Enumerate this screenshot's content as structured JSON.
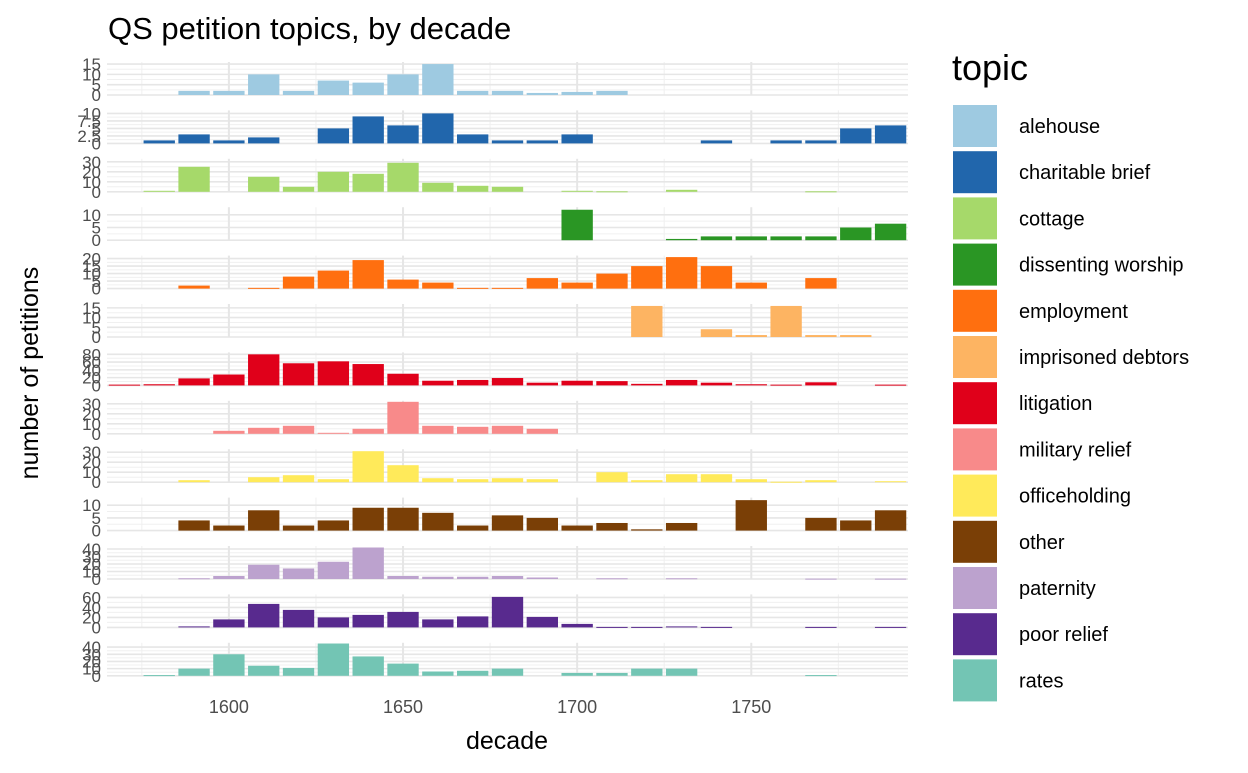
{
  "chart_data": {
    "type": "bar",
    "title": "QS petition topics, by decade",
    "xlabel": "decade",
    "ylabel": "number of petitions",
    "legend_title": "topic",
    "legend_position": "right",
    "x_ticks": [
      1600,
      1650,
      1700,
      1750
    ],
    "xlim": [
      1565,
      1795
    ],
    "grid": true,
    "categories": [
      1570,
      1580,
      1590,
      1600,
      1610,
      1620,
      1630,
      1640,
      1650,
      1660,
      1670,
      1680,
      1690,
      1700,
      1710,
      1720,
      1730,
      1740,
      1750,
      1760,
      1770,
      1780,
      1790
    ],
    "series": [
      {
        "name": "alehouse",
        "color": "#9ECAE1",
        "ylim": [
          0,
          16
        ],
        "y_ticks": [
          0,
          5,
          10,
          15
        ],
        "values": [
          0,
          0,
          2,
          2,
          10,
          2,
          7,
          6,
          10,
          15,
          2,
          2,
          1,
          1.5,
          2,
          0,
          0,
          0,
          0,
          0,
          0,
          0,
          0
        ]
      },
      {
        "name": "charitable brief",
        "color": "#2166AC",
        "ylim": [
          0,
          11
        ],
        "y_ticks": [
          0,
          2.5,
          5,
          7.5,
          10
        ],
        "values": [
          0,
          1,
          3,
          1,
          2,
          0,
          5,
          9,
          6,
          10,
          3,
          1,
          1,
          3,
          0,
          0,
          0,
          1,
          0,
          1,
          1,
          5,
          6
        ]
      },
      {
        "name": "cottage",
        "color": "#A6D96A",
        "ylim": [
          0,
          33
        ],
        "y_ticks": [
          0,
          10,
          20,
          30
        ],
        "values": [
          0,
          1,
          25,
          0,
          15,
          5,
          20,
          18,
          29,
          9,
          6,
          5,
          0,
          1,
          0.5,
          0,
          2,
          0,
          0,
          0,
          0.5,
          0,
          0
        ]
      },
      {
        "name": "dissenting worship",
        "color": "#2A9624",
        "ylim": [
          0,
          13
        ],
        "y_ticks": [
          0,
          5,
          10
        ],
        "values": [
          0,
          0,
          0,
          0,
          0,
          0,
          0,
          0,
          0,
          0,
          0,
          0,
          0,
          12,
          0,
          0,
          0.5,
          1.5,
          1.5,
          1.5,
          1.5,
          5,
          6.5
        ]
      },
      {
        "name": "employment",
        "color": "#FF6F0F",
        "ylim": [
          0,
          22
        ],
        "y_ticks": [
          0,
          5,
          10,
          15,
          20
        ],
        "values": [
          0,
          0,
          2,
          0,
          0.5,
          8,
          12,
          19,
          6,
          4,
          0.5,
          0.5,
          7,
          4,
          10,
          15,
          21,
          15,
          4,
          0,
          7,
          0,
          0
        ]
      },
      {
        "name": "imprisoned debtors",
        "color": "#FDB462",
        "ylim": [
          0,
          17
        ],
        "y_ticks": [
          0,
          5,
          10,
          15
        ],
        "values": [
          0,
          0,
          0,
          0,
          0,
          0,
          0,
          0,
          0,
          0,
          0,
          0,
          0,
          0,
          0,
          16,
          0,
          4,
          1,
          16,
          1,
          1,
          0
        ]
      },
      {
        "name": "litigation",
        "color": "#E0001A",
        "ylim": [
          0,
          85
        ],
        "y_ticks": [
          0,
          20,
          40,
          60,
          80
        ],
        "values": [
          2,
          3,
          18,
          28,
          80,
          57,
          62,
          55,
          30,
          12,
          14,
          19,
          7,
          12,
          11,
          4,
          14,
          7,
          3,
          2,
          8,
          0,
          2
        ]
      },
      {
        "name": "military relief",
        "color": "#F88A8A",
        "ylim": [
          0,
          33
        ],
        "y_ticks": [
          0,
          10,
          20,
          30
        ],
        "values": [
          0,
          0,
          0,
          3,
          6,
          8,
          1,
          5,
          32,
          8,
          7,
          8,
          5,
          0,
          0,
          0,
          0,
          0,
          0,
          0,
          0,
          0,
          0
        ]
      },
      {
        "name": "officeholding",
        "color": "#FFEA5A",
        "ylim": [
          0,
          33
        ],
        "y_ticks": [
          0,
          10,
          20,
          30
        ],
        "values": [
          0,
          0,
          2,
          0,
          5,
          7,
          3,
          31,
          17,
          4,
          3,
          4,
          3,
          0,
          10,
          2,
          8,
          8,
          3,
          0.5,
          2,
          0,
          1
        ]
      },
      {
        "name": "other",
        "color": "#7A3F06",
        "ylim": [
          0,
          13
        ],
        "y_ticks": [
          0,
          5,
          10
        ],
        "values": [
          0,
          0,
          4,
          2,
          8,
          2,
          4,
          9,
          9,
          7,
          2,
          6,
          5,
          2,
          3,
          0.5,
          3,
          0,
          12,
          0,
          5,
          4,
          8
        ]
      },
      {
        "name": "paternity",
        "color": "#BCA2CE",
        "ylim": [
          0,
          44
        ],
        "y_ticks": [
          0,
          10,
          20,
          30,
          40
        ],
        "values": [
          0,
          0,
          1,
          4,
          19,
          14,
          23,
          42,
          4,
          3,
          3,
          4,
          2,
          0,
          1,
          0,
          1,
          0,
          0,
          0,
          0.5,
          0,
          0.5
        ]
      },
      {
        "name": "poor relief",
        "color": "#582A8E",
        "ylim": [
          0,
          66
        ],
        "y_ticks": [
          0,
          20,
          40,
          60
        ],
        "values": [
          0,
          0,
          2,
          16,
          47,
          35,
          20,
          25,
          31,
          16,
          22,
          61,
          21,
          7,
          1,
          1,
          2,
          1,
          0,
          0,
          1,
          0,
          1
        ]
      },
      {
        "name": "rates",
        "color": "#73C5B4",
        "ylim": [
          0,
          46
        ],
        "y_ticks": [
          0,
          10,
          20,
          30,
          40
        ],
        "values": [
          0,
          1,
          10,
          30,
          14,
          11,
          45,
          27,
          17,
          6,
          7,
          10,
          0,
          4,
          4,
          10,
          10,
          0,
          0,
          0,
          1,
          0,
          0
        ]
      }
    ]
  }
}
